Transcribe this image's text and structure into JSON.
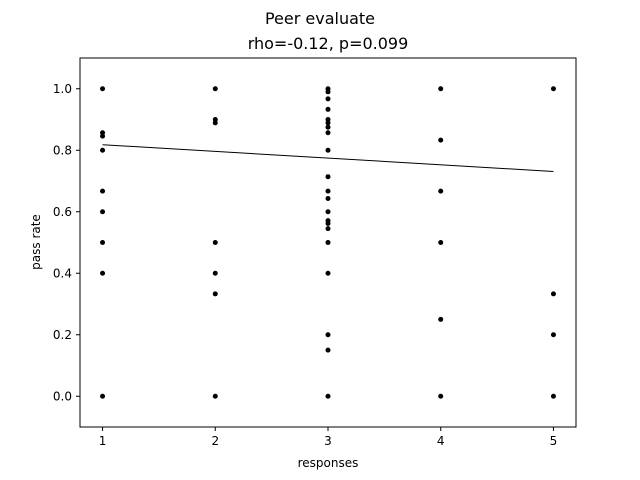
{
  "chart_data": {
    "type": "scatter",
    "title": "Peer evaluate",
    "subtitle": "rho=-0.12, p=0.099",
    "xlabel": "responses",
    "ylabel": "pass rate",
    "xlim": [
      0.8,
      5.2
    ],
    "ylim": [
      -0.1,
      1.1
    ],
    "xticks": [
      "1",
      "2",
      "3",
      "4",
      "5"
    ],
    "yticks": [
      "0.0",
      "0.2",
      "0.4",
      "0.6",
      "0.8",
      "1.0"
    ],
    "grid": false,
    "legend": "none",
    "marker_color": "#000000",
    "points": [
      {
        "x": 1,
        "y": 1.0
      },
      {
        "x": 1,
        "y": 0.857
      },
      {
        "x": 1,
        "y": 0.846
      },
      {
        "x": 1,
        "y": 0.8
      },
      {
        "x": 1,
        "y": 0.667
      },
      {
        "x": 1,
        "y": 0.6
      },
      {
        "x": 1,
        "y": 0.5
      },
      {
        "x": 1,
        "y": 0.4
      },
      {
        "x": 1,
        "y": 0.0
      },
      {
        "x": 2,
        "y": 1.0
      },
      {
        "x": 2,
        "y": 0.9
      },
      {
        "x": 2,
        "y": 0.889
      },
      {
        "x": 2,
        "y": 0.5
      },
      {
        "x": 2,
        "y": 0.4
      },
      {
        "x": 2,
        "y": 0.333
      },
      {
        "x": 2,
        "y": 0.0
      },
      {
        "x": 3,
        "y": 1.0
      },
      {
        "x": 3,
        "y": 0.99
      },
      {
        "x": 3,
        "y": 0.967
      },
      {
        "x": 3,
        "y": 0.933
      },
      {
        "x": 3,
        "y": 0.9
      },
      {
        "x": 3,
        "y": 0.889
      },
      {
        "x": 3,
        "y": 0.875
      },
      {
        "x": 3,
        "y": 0.857
      },
      {
        "x": 3,
        "y": 0.8
      },
      {
        "x": 3,
        "y": 0.714
      },
      {
        "x": 3,
        "y": 0.667
      },
      {
        "x": 3,
        "y": 0.643
      },
      {
        "x": 3,
        "y": 0.6
      },
      {
        "x": 3,
        "y": 0.571
      },
      {
        "x": 3,
        "y": 0.562
      },
      {
        "x": 3,
        "y": 0.545
      },
      {
        "x": 3,
        "y": 0.5
      },
      {
        "x": 3,
        "y": 0.4
      },
      {
        "x": 3,
        "y": 0.2
      },
      {
        "x": 3,
        "y": 0.15
      },
      {
        "x": 3,
        "y": 0.0
      },
      {
        "x": 4,
        "y": 1.0
      },
      {
        "x": 4,
        "y": 0.833
      },
      {
        "x": 4,
        "y": 0.667
      },
      {
        "x": 4,
        "y": 0.5
      },
      {
        "x": 4,
        "y": 0.25
      },
      {
        "x": 4,
        "y": 0.0
      },
      {
        "x": 5,
        "y": 1.0
      },
      {
        "x": 5,
        "y": 0.333
      },
      {
        "x": 5,
        "y": 0.2
      },
      {
        "x": 5,
        "y": 0.0
      }
    ],
    "trend_line": {
      "x": [
        1,
        5
      ],
      "y": [
        0.818,
        0.731
      ]
    }
  }
}
